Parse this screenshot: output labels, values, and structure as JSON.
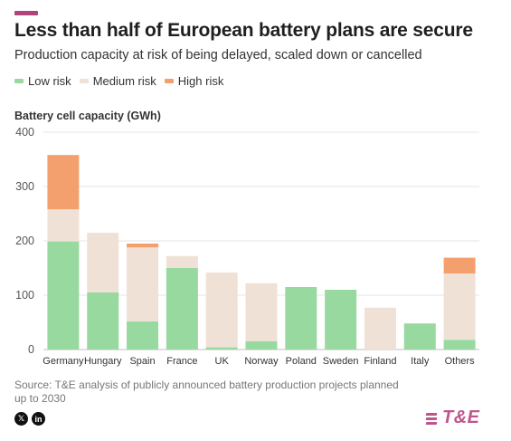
{
  "header": {
    "title": "Less than half of European battery plans are secure",
    "subtitle": "Production capacity at risk of being delayed, scaled down or cancelled"
  },
  "legend": [
    {
      "label": "Low risk",
      "color": "#98d9a0"
    },
    {
      "label": "Medium risk",
      "color": "#f0e1d6"
    },
    {
      "label": "High risk",
      "color": "#f3a06e"
    }
  ],
  "chart_data": {
    "type": "bar",
    "stacked": true,
    "ylabel": "Battery cell capacity (GWh)",
    "ylim": [
      0,
      400
    ],
    "yticks": [
      0,
      100,
      200,
      300,
      400
    ],
    "grid": true,
    "legend_position": "top-left",
    "categories": [
      "Germany",
      "Hungary",
      "Spain",
      "France",
      "UK",
      "Norway",
      "Poland",
      "Sweden",
      "Finland",
      "Italy",
      "Others"
    ],
    "series": [
      {
        "name": "Low risk",
        "color": "#98d9a0",
        "values": [
          199,
          105,
          52,
          150,
          4,
          15,
          115,
          110,
          0,
          48,
          18
        ]
      },
      {
        "name": "Medium risk",
        "color": "#f0e1d6",
        "values": [
          59,
          110,
          136,
          22,
          138,
          107,
          0,
          0,
          77,
          0,
          122
        ]
      },
      {
        "name": "High risk",
        "color": "#f3a06e",
        "values": [
          100,
          0,
          7,
          0,
          0,
          0,
          0,
          0,
          0,
          0,
          29
        ]
      }
    ]
  },
  "footer": {
    "source": "Source: T&E analysis of publicly announced battery production projects planned up to 2030",
    "social": [
      "x-icon",
      "linkedin-icon"
    ],
    "brand": "T&E"
  }
}
